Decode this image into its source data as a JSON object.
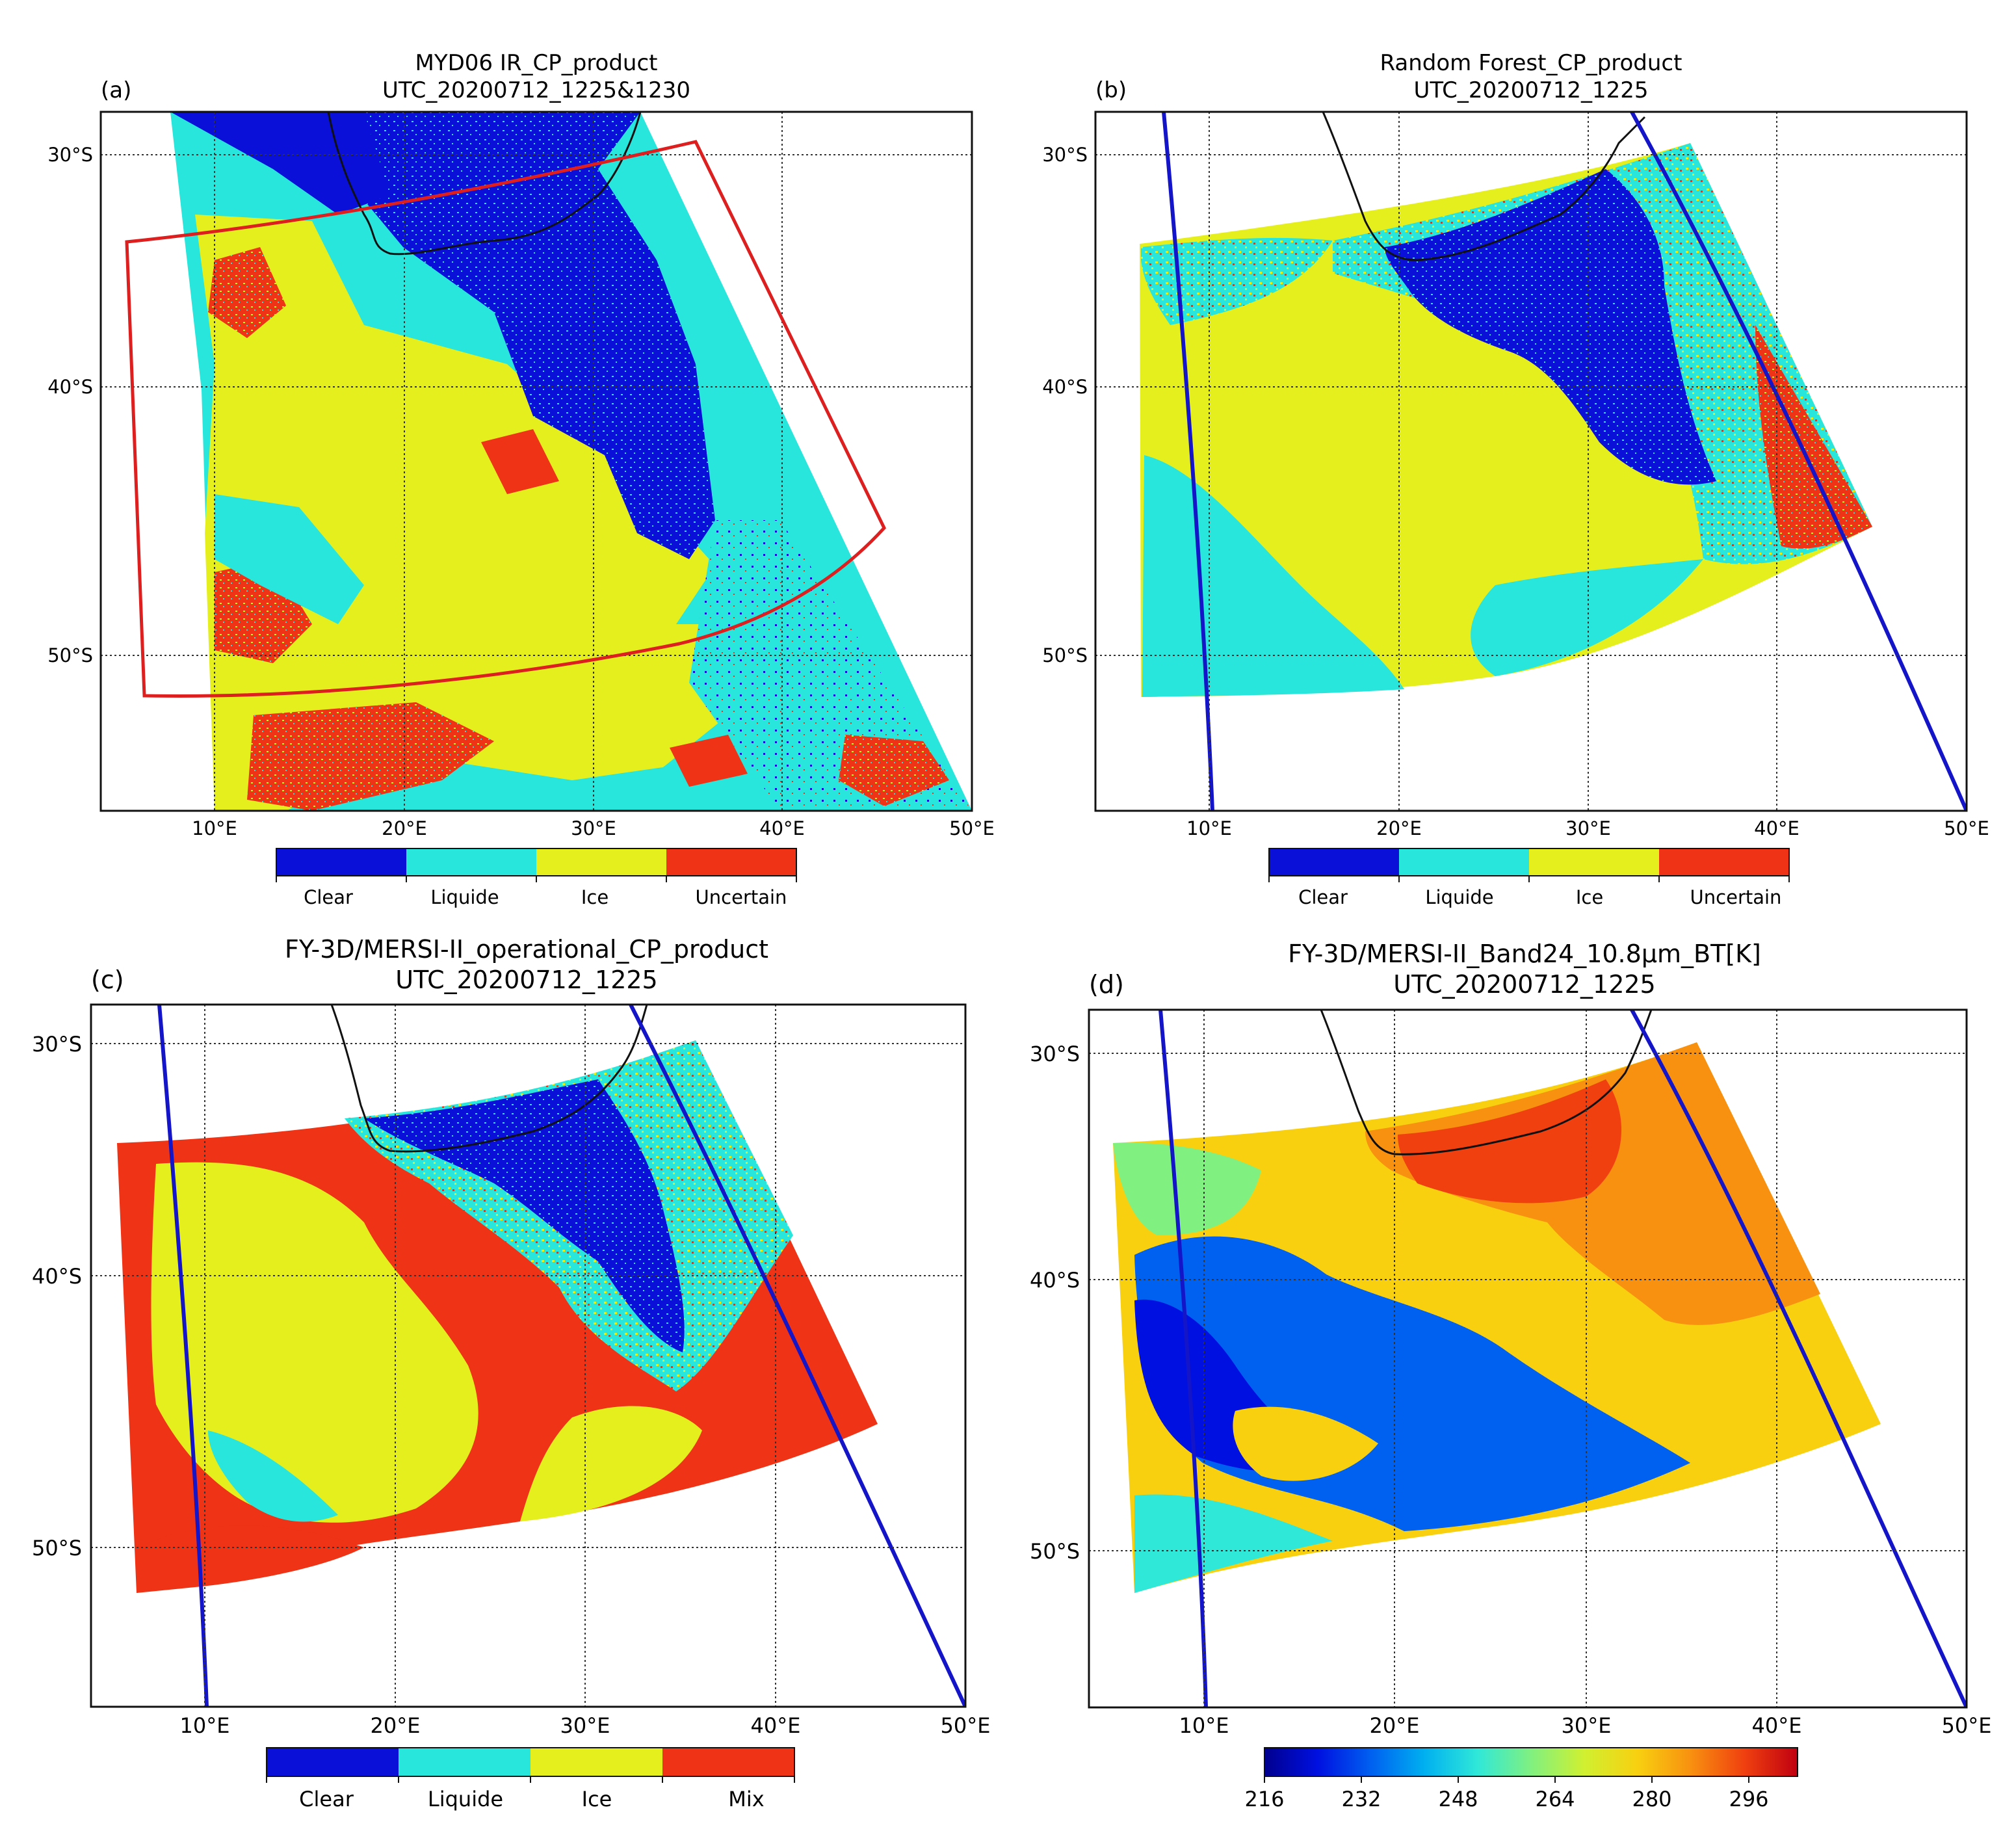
{
  "figure": {
    "panels": [
      {
        "label": "(a)",
        "title_line1": "MYD06 IR_CP_product",
        "title_line2": "UTC_20200712_1225&1230",
        "lat_labels": [
          "30°S",
          "40°S",
          "50°S"
        ],
        "lon_labels": [
          "10°E",
          "20°E",
          "30°E",
          "40°E",
          "50°E"
        ],
        "colorbar": {
          "type": "categorical",
          "labels": [
            "Clear",
            "Liquide",
            "Ice",
            "Uncertain"
          ],
          "colors": [
            "#0a10d8",
            "#28e6dc",
            "#e6ef1e",
            "#ee3316"
          ]
        },
        "overlay_icon": "red-domain-box"
      },
      {
        "label": "(b)",
        "title_line1": "Random Forest_CP_product",
        "title_line2": "UTC_20200712_1225",
        "lat_labels": [
          "30°S",
          "40°S",
          "50°S"
        ],
        "lon_labels": [
          "10°E",
          "20°E",
          "30°E",
          "40°E",
          "50°E"
        ],
        "colorbar": {
          "type": "categorical",
          "labels": [
            "Clear",
            "Liquide",
            "Ice",
            "Uncertain"
          ],
          "colors": [
            "#0a10d8",
            "#28e6dc",
            "#e6ef1e",
            "#ee3316"
          ]
        },
        "overlay_icon": "blue-swath-lines"
      },
      {
        "label": "(c)",
        "title_line1": "FY-3D/MERSI-II_operational_CP_product",
        "title_line2": "UTC_20200712_1225",
        "lat_labels": [
          "30°S",
          "40°S",
          "50°S"
        ],
        "lon_labels": [
          "10°E",
          "20°E",
          "30°E",
          "40°E",
          "50°E"
        ],
        "colorbar": {
          "type": "categorical",
          "labels": [
            "Clear",
            "Liquide",
            "Ice",
            "Mix"
          ],
          "colors": [
            "#0a10d8",
            "#28e6dc",
            "#e6ef1e",
            "#ee3316"
          ]
        },
        "overlay_icon": "blue-swath-lines"
      },
      {
        "label": "(d)",
        "title_line1": "FY-3D/MERSI-II_Band24_10.8μm_BT[K]",
        "title_line2": "UTC_20200712_1225",
        "lat_labels": [
          "30°S",
          "40°S",
          "50°S"
        ],
        "lon_labels": [
          "10°E",
          "20°E",
          "30°E",
          "40°E",
          "50°E"
        ],
        "colorbar": {
          "type": "continuous",
          "tick_labels": [
            "216",
            "232",
            "248",
            "264",
            "280",
            "296"
          ],
          "colors": [
            "#00008f",
            "#0010e0",
            "#0060f0",
            "#00b0f0",
            "#30e8d8",
            "#80f080",
            "#d0f030",
            "#f8d010",
            "#f89010",
            "#f04010",
            "#c00010"
          ]
        },
        "overlay_icon": "blue-swath-lines"
      }
    ]
  }
}
